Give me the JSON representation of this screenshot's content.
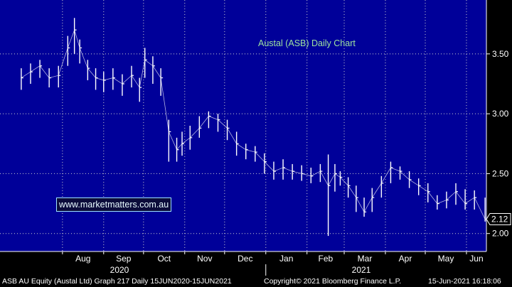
{
  "chart_data": {
    "type": "candlestick",
    "title": "Austal (ASB) Daily Chart",
    "y_axis": {
      "ylim": [
        1.85,
        3.95
      ],
      "ticks": [
        2.0,
        2.5,
        3.0,
        3.5
      ],
      "tick_labels": [
        "2.00",
        "2.50",
        "3.00",
        "3.50"
      ],
      "position": "right"
    },
    "x_axis": {
      "months": [
        "Aug",
        "Sep",
        "Oct",
        "Nov",
        "Dec",
        "Jan",
        "Feb",
        "Mar",
        "Apr",
        "May",
        "Jun"
      ],
      "years": [
        "2020",
        "2021"
      ]
    },
    "last_price": "2.12",
    "grid": true,
    "x": [
      "2020-07-01",
      "2020-07-08",
      "2020-07-15",
      "2020-07-22",
      "2020-07-29",
      "2020-08-05",
      "2020-08-10",
      "2020-08-14",
      "2020-08-20",
      "2020-08-26",
      "2020-09-01",
      "2020-09-08",
      "2020-09-15",
      "2020-09-22",
      "2020-09-28",
      "2020-10-02",
      "2020-10-08",
      "2020-10-14",
      "2020-10-20",
      "2020-10-26",
      "2020-10-30",
      "2020-11-05",
      "2020-11-12",
      "2020-11-19",
      "2020-11-26",
      "2020-12-03",
      "2020-12-10",
      "2020-12-17",
      "2020-12-24",
      "2020-12-31",
      "2021-01-07",
      "2021-01-14",
      "2021-01-21",
      "2021-01-28",
      "2021-02-04",
      "2021-02-11",
      "2021-02-17",
      "2021-02-22",
      "2021-02-26",
      "2021-03-04",
      "2021-03-10",
      "2021-03-16",
      "2021-03-22",
      "2021-03-29",
      "2021-04-05",
      "2021-04-12",
      "2021-04-19",
      "2021-04-26",
      "2021-05-03",
      "2021-05-10",
      "2021-05-17",
      "2021-05-24",
      "2021-05-31",
      "2021-06-07",
      "2021-06-15"
    ],
    "close": [
      3.3,
      3.35,
      3.4,
      3.3,
      3.32,
      3.55,
      3.7,
      3.55,
      3.38,
      3.3,
      3.28,
      3.3,
      3.25,
      3.32,
      3.22,
      3.45,
      3.4,
      3.3,
      2.85,
      2.7,
      2.75,
      2.8,
      2.88,
      2.98,
      2.95,
      2.88,
      2.75,
      2.7,
      2.68,
      2.6,
      2.52,
      2.55,
      2.52,
      2.5,
      2.48,
      2.52,
      2.4,
      2.5,
      2.47,
      2.4,
      2.3,
      2.18,
      2.3,
      2.42,
      2.55,
      2.52,
      2.45,
      2.4,
      2.35,
      2.25,
      2.28,
      2.35,
      2.25,
      2.3,
      2.12
    ],
    "high": [
      3.38,
      3.42,
      3.45,
      3.38,
      3.4,
      3.65,
      3.8,
      3.62,
      3.45,
      3.38,
      3.35,
      3.38,
      3.33,
      3.4,
      3.3,
      3.55,
      3.48,
      3.38,
      2.95,
      2.8,
      2.85,
      2.9,
      2.98,
      3.02,
      3.0,
      2.95,
      2.85,
      2.75,
      2.73,
      2.67,
      2.6,
      2.62,
      2.58,
      2.57,
      2.55,
      2.58,
      2.66,
      2.58,
      2.52,
      2.47,
      2.4,
      2.3,
      2.38,
      2.48,
      2.6,
      2.56,
      2.52,
      2.46,
      2.42,
      2.32,
      2.35,
      2.42,
      2.37,
      2.36,
      2.3
    ],
    "low": [
      3.2,
      3.25,
      3.3,
      3.22,
      3.22,
      3.4,
      3.5,
      3.42,
      3.28,
      3.2,
      3.18,
      3.2,
      3.15,
      3.22,
      3.1,
      3.3,
      3.25,
      3.15,
      2.6,
      2.6,
      2.65,
      2.7,
      2.8,
      2.88,
      2.85,
      2.78,
      2.65,
      2.62,
      2.6,
      2.5,
      2.45,
      2.45,
      2.45,
      2.44,
      2.42,
      2.43,
      1.98,
      2.35,
      2.4,
      2.3,
      2.18,
      2.14,
      2.18,
      2.3,
      2.42,
      2.45,
      2.38,
      2.32,
      2.26,
      2.2,
      2.21,
      2.24,
      2.2,
      2.2,
      2.1
    ]
  },
  "overlay": {
    "watermark": "www.marketmatters.com.au"
  },
  "status_bar": {
    "left": "ASB AU Equity (Austal Ltd) Graph 217  Daily 15JUN2020-15JUN2021",
    "middle": "Copyright© 2021 Bloomberg Finance L.P.",
    "right": "15-Jun-2021 16:18:06"
  },
  "colors": {
    "background": "#000099",
    "grid": "#cccccc",
    "price": "#ffffff",
    "title": "#9fe39f",
    "axis_bg": "#000000"
  }
}
